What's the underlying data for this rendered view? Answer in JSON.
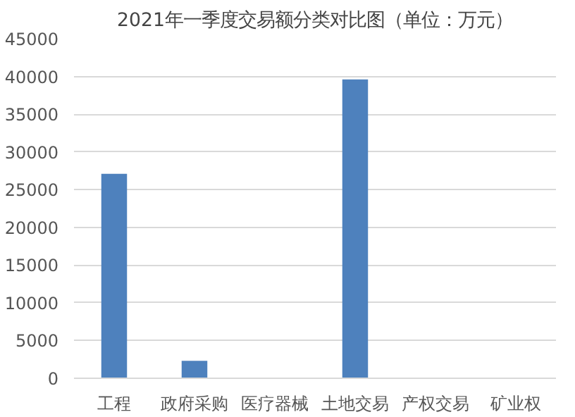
{
  "chart_data": {
    "type": "bar",
    "title": "2021年一季度交易额分类对比图（单位：万元）",
    "categories": [
      "工程",
      "政府采购",
      "医疗器械",
      "土地交易",
      "产权交易",
      "矿业权"
    ],
    "values": [
      27100,
      2300,
      0,
      39600,
      0,
      0
    ],
    "color": "#4e81bd",
    "ylim": [
      0,
      45000
    ],
    "yticks": [
      0,
      5000,
      10000,
      15000,
      20000,
      25000,
      30000,
      35000,
      40000,
      45000
    ],
    "grid": "y"
  }
}
